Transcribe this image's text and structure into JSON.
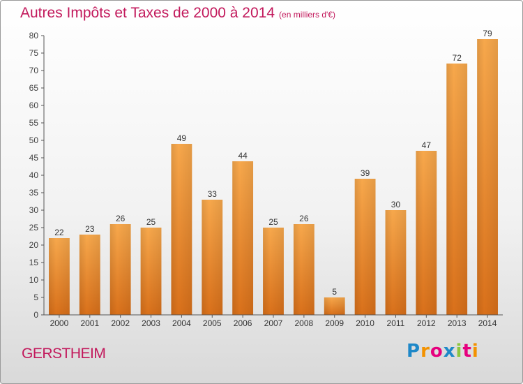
{
  "title": "Autres Impôts et Taxes de 2000 à 2014",
  "title_unit": "(en milliers d'€)",
  "town": "GERSTHEIM",
  "logo": "Proxiti",
  "colors": {
    "bar_light": "#f7a84c",
    "bar_dark": "#d9701a",
    "title": "#c2185b"
  },
  "chart_data": {
    "type": "bar",
    "title": "Autres Impôts et Taxes de 2000 à 2014",
    "xlabel": "",
    "ylabel": "",
    "categories": [
      "2000",
      "2001",
      "2002",
      "2003",
      "2004",
      "2005",
      "2006",
      "2007",
      "2008",
      "2009",
      "2010",
      "2011",
      "2012",
      "2013",
      "2014"
    ],
    "values": [
      22,
      23,
      26,
      25,
      49,
      33,
      44,
      25,
      26,
      5,
      39,
      30,
      47,
      72,
      79
    ],
    "ylim": [
      0,
      80
    ],
    "yticks": [
      0,
      5,
      10,
      15,
      20,
      25,
      30,
      35,
      40,
      45,
      50,
      55,
      60,
      65,
      70,
      75,
      80
    ],
    "grid": false,
    "legend": "none"
  }
}
